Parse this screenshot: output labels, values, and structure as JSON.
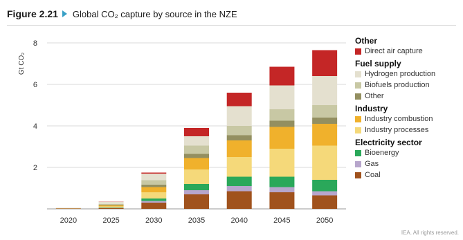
{
  "figure": {
    "number": "Figure 2.21",
    "title": "Global CO₂ capture by source in the NZE"
  },
  "credit": "IEA. All rights reserved.",
  "chart_data": {
    "type": "bar",
    "stacked": true,
    "ylabel": "Gt CO₂",
    "ylim": [
      0,
      8
    ],
    "yticks": [
      2,
      4,
      6,
      8
    ],
    "categories": [
      "2020",
      "2025",
      "2030",
      "2035",
      "2040",
      "2045",
      "2050"
    ],
    "grid": true,
    "legend_position": "right",
    "series": [
      {
        "name": "Coal",
        "group": "Electricity sector",
        "color": "#a0521d",
        "values": [
          0.02,
          0.04,
          0.3,
          0.7,
          0.85,
          0.8,
          0.65
        ]
      },
      {
        "name": "Gas",
        "group": "Electricity sector",
        "color": "#b7a6cc",
        "values": [
          0,
          0.01,
          0.08,
          0.2,
          0.25,
          0.25,
          0.2
        ]
      },
      {
        "name": "Bioenergy",
        "group": "Electricity sector",
        "color": "#2aa85a",
        "values": [
          0,
          0.02,
          0.12,
          0.3,
          0.45,
          0.5,
          0.55
        ]
      },
      {
        "name": "Industry processes",
        "group": "Industry",
        "color": "#f5d97a",
        "values": [
          0.01,
          0.05,
          0.3,
          0.7,
          0.95,
          1.35,
          1.65
        ]
      },
      {
        "name": "Industry combustion",
        "group": "Industry",
        "color": "#f0b12c",
        "values": [
          0,
          0.05,
          0.25,
          0.55,
          0.8,
          1.05,
          1.05
        ]
      },
      {
        "name": "Other",
        "group": "Fuel supply",
        "color": "#938f60",
        "values": [
          0.01,
          0.03,
          0.12,
          0.2,
          0.25,
          0.3,
          0.3
        ]
      },
      {
        "name": "Biofuels production",
        "group": "Fuel supply",
        "color": "#c8c8a4",
        "values": [
          0,
          0.04,
          0.22,
          0.4,
          0.45,
          0.55,
          0.6
        ]
      },
      {
        "name": "Hydrogen production",
        "group": "Fuel supply",
        "color": "#e4e0cf",
        "values": [
          0.01,
          0.1,
          0.31,
          0.45,
          0.95,
          1.15,
          1.4
        ]
      },
      {
        "name": "Direct air capture",
        "group": "Other",
        "color": "#c42626",
        "values": [
          0,
          0.01,
          0.05,
          0.4,
          0.65,
          0.9,
          1.25
        ]
      }
    ],
    "legend_groups": [
      {
        "heading": "Other",
        "items": [
          "Direct air capture"
        ]
      },
      {
        "heading": "Fuel supply",
        "items": [
          "Hydrogen production",
          "Biofuels production",
          "Other"
        ]
      },
      {
        "heading": "Industry",
        "items": [
          "Industry combustion",
          "Industry processes"
        ]
      },
      {
        "heading": "Electricity sector",
        "items": [
          "Bioenergy",
          "Gas",
          "Coal"
        ]
      }
    ]
  }
}
